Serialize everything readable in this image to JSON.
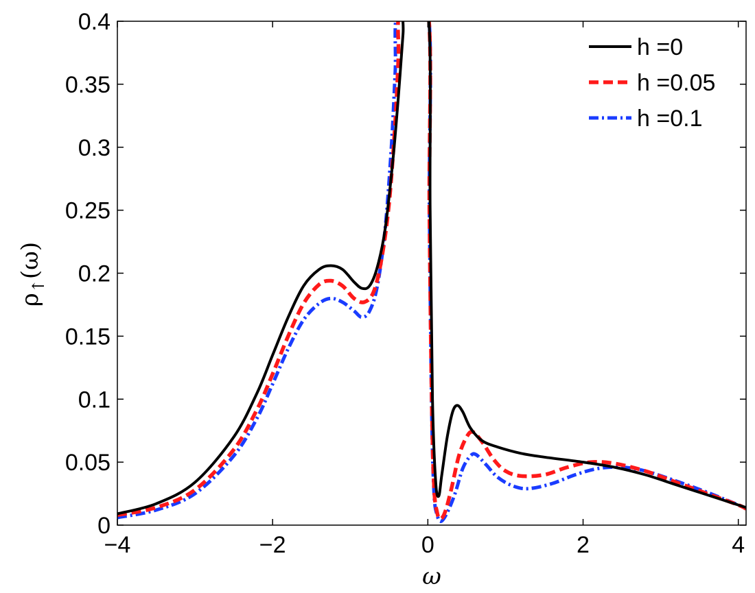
{
  "chart_data": {
    "type": "line",
    "title": "",
    "xlabel": "ω",
    "ylabel": "ρ↑(ω)",
    "ylabel_main": "ρ",
    "ylabel_sub": "↑",
    "ylabel_tail": "(ω)",
    "xlim": [
      -4,
      4.1
    ],
    "ylim": [
      0,
      0.4
    ],
    "xticks": [
      -4,
      -2,
      0,
      2,
      4
    ],
    "xtick_labels": [
      "−4",
      "−2",
      "0",
      "2",
      "4"
    ],
    "yticks": [
      0,
      0.05,
      0.1,
      0.15,
      0.2,
      0.25,
      0.3,
      0.35,
      0.4
    ],
    "ytick_labels": [
      "0",
      "0.05",
      "0.1",
      "0.15",
      "0.2",
      "0.25",
      "0.3",
      "0.35",
      "0.4"
    ],
    "grid": false,
    "legend_position": "top-right",
    "series": [
      {
        "name": "h =0",
        "color": "#000000",
        "style": "solid",
        "x": [
          -4.0,
          -3.5,
          -3.0,
          -2.5,
          -2.2,
          -2.0,
          -1.8,
          -1.6,
          -1.4,
          -1.25,
          -1.1,
          -0.95,
          -0.85,
          -0.75,
          -0.65,
          -0.55,
          -0.45,
          -0.38,
          -0.32,
          -0.3,
          0.0,
          0.03,
          0.06,
          0.1,
          0.14,
          0.18,
          0.25,
          0.32,
          0.38,
          0.45,
          0.55,
          0.7,
          0.9,
          1.2,
          1.5,
          2.0,
          2.4,
          2.8,
          3.2,
          3.6,
          4.0,
          4.1
        ],
        "y": [
          0.009,
          0.017,
          0.034,
          0.07,
          0.105,
          0.135,
          0.165,
          0.19,
          0.203,
          0.206,
          0.203,
          0.193,
          0.188,
          0.19,
          0.205,
          0.235,
          0.29,
          0.34,
          0.39,
          0.41,
          0.41,
          0.25,
          0.1,
          0.035,
          0.023,
          0.04,
          0.07,
          0.09,
          0.095,
          0.09,
          0.077,
          0.067,
          0.062,
          0.057,
          0.054,
          0.05,
          0.046,
          0.04,
          0.032,
          0.024,
          0.016,
          0.014
        ]
      },
      {
        "name": "h =0.05",
        "color": "#ff1a1a",
        "style": "dashed",
        "x": [
          -4.0,
          -3.5,
          -3.0,
          -2.5,
          -2.2,
          -2.0,
          -1.8,
          -1.6,
          -1.4,
          -1.25,
          -1.1,
          -0.95,
          -0.82,
          -0.7,
          -0.6,
          -0.5,
          -0.42,
          -0.38,
          -0.35,
          0.0,
          0.02,
          0.05,
          0.08,
          0.12,
          0.16,
          0.22,
          0.3,
          0.4,
          0.5,
          0.58,
          0.7,
          0.85,
          1.0,
          1.2,
          1.5,
          1.8,
          2.1,
          2.4,
          2.8,
          3.2,
          3.6,
          4.0,
          4.1
        ],
        "y": [
          0.008,
          0.014,
          0.028,
          0.06,
          0.092,
          0.12,
          0.15,
          0.176,
          0.191,
          0.194,
          0.19,
          0.18,
          0.177,
          0.185,
          0.21,
          0.255,
          0.32,
          0.37,
          0.41,
          0.41,
          0.25,
          0.1,
          0.03,
          0.01,
          0.005,
          0.01,
          0.028,
          0.055,
          0.07,
          0.074,
          0.066,
          0.052,
          0.043,
          0.039,
          0.04,
          0.046,
          0.05,
          0.049,
          0.043,
          0.034,
          0.025,
          0.016,
          0.013
        ]
      },
      {
        "name": "h =0.1",
        "color": "#1a3cff",
        "style": "dashdot",
        "x": [
          -4.0,
          -3.5,
          -3.0,
          -2.5,
          -2.2,
          -2.0,
          -1.8,
          -1.6,
          -1.4,
          -1.25,
          -1.1,
          -0.95,
          -0.85,
          -0.75,
          -0.65,
          -0.55,
          -0.47,
          -0.42,
          -0.38,
          0.0,
          0.02,
          0.05,
          0.08,
          0.12,
          0.17,
          0.25,
          0.35,
          0.45,
          0.55,
          0.62,
          0.75,
          0.9,
          1.1,
          1.3,
          1.6,
          1.9,
          2.2,
          2.5,
          2.8,
          3.2,
          3.6,
          4.0,
          4.1
        ],
        "y": [
          0.006,
          0.012,
          0.025,
          0.055,
          0.085,
          0.112,
          0.14,
          0.163,
          0.176,
          0.18,
          0.177,
          0.17,
          0.165,
          0.17,
          0.19,
          0.235,
          0.3,
          0.36,
          0.41,
          0.41,
          0.25,
          0.09,
          0.025,
          0.008,
          0.003,
          0.01,
          0.025,
          0.045,
          0.055,
          0.056,
          0.048,
          0.038,
          0.031,
          0.029,
          0.033,
          0.04,
          0.045,
          0.046,
          0.043,
          0.035,
          0.026,
          0.016,
          0.013
        ]
      }
    ]
  }
}
